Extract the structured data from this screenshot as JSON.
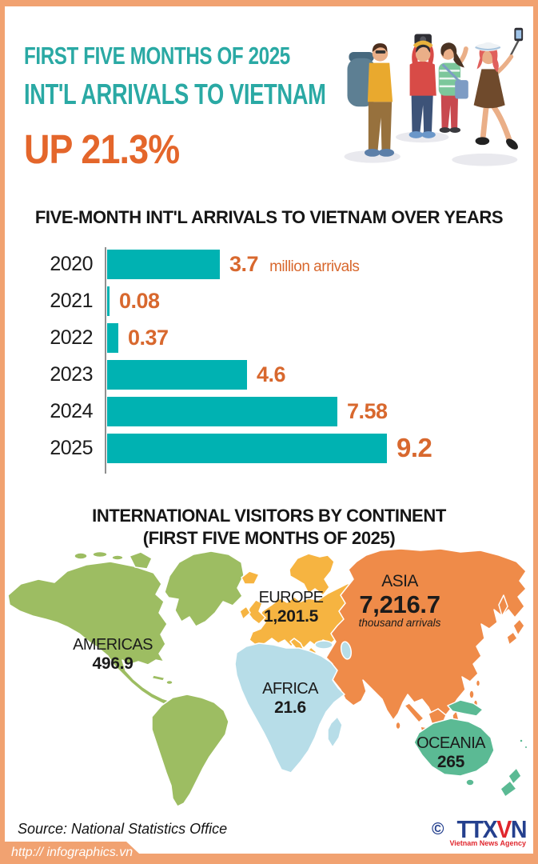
{
  "header": {
    "subtitle": "FIRST FIVE MONTHS OF 2025",
    "title": "INT'L ARRIVALS TO VIETNAM",
    "highlight": "UP 21.3%"
  },
  "chart_data": [
    {
      "type": "bar",
      "orientation": "horizontal",
      "title": "FIVE-MONTH INT'L ARRIVALS TO VIETNAM OVER YEARS",
      "categories": [
        "2020",
        "2021",
        "2022",
        "2023",
        "2024",
        "2025"
      ],
      "values": [
        3.7,
        0.08,
        0.37,
        4.6,
        7.58,
        9.2
      ],
      "value_labels": [
        "3.7",
        "0.08",
        "0.37",
        "4.6",
        "7.58",
        "9.2"
      ],
      "unit_label": "million arrivals",
      "xlim": [
        0,
        9.6
      ],
      "grid": false,
      "bar_color": "#00b2b2",
      "value_color": "#d8682e"
    },
    {
      "type": "map",
      "title": "INTERNATIONAL VISITORS BY CONTINENT",
      "subtitle": "(FIRST FIVE MONTHS OF 2025)",
      "unit": "thousand arrivals",
      "regions": [
        {
          "name": "AMERICAS",
          "value": "496.9",
          "color": "#9dbd62"
        },
        {
          "name": "EUROPE",
          "value": "1,201.5",
          "color": "#f6b441"
        },
        {
          "name": "ASIA",
          "value": "7,216.7",
          "unit_label": "thousand arrivals",
          "color": "#ef8b49"
        },
        {
          "name": "AFRICA",
          "value": "21.6",
          "color": "#b7dde8"
        },
        {
          "name": "OCEANIA",
          "value": "265",
          "color": "#5bba94"
        }
      ]
    }
  ],
  "footer": {
    "source": "Source: National Statistics Office",
    "copyright": "©",
    "logo_parts": [
      "TTX",
      "V",
      "N"
    ],
    "agency_subtitle": "Vietnam News Agency",
    "url": "http:// infographics.vn"
  },
  "colors": {
    "teal_heading": "#2aa9a4",
    "accent_orange": "#e4662b",
    "frame_orange": "#f1a271",
    "bar_teal": "#00b2b2",
    "bar_value_orange": "#d8682e"
  }
}
